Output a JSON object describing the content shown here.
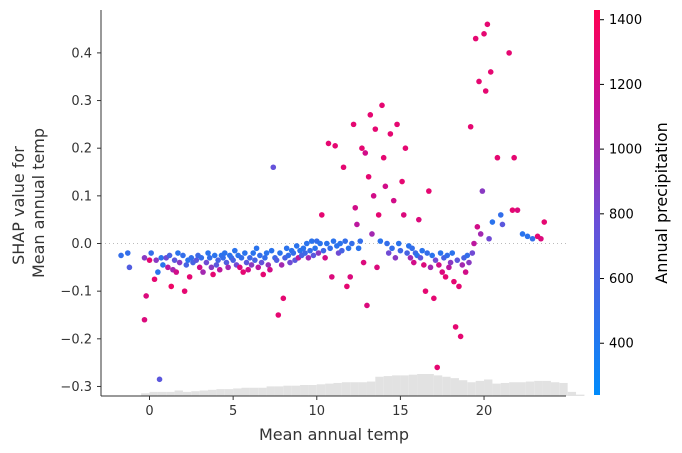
{
  "chart_data": {
    "type": "scatter",
    "title": "",
    "xlabel": "Mean annual temp",
    "ylabel": [
      "SHAP value for",
      "Mean annual temp"
    ],
    "xlim": [
      -2.9,
      24.9
    ],
    "ylim": [
      -0.32,
      0.49
    ],
    "x_ticks": [
      0,
      5,
      10,
      15,
      20
    ],
    "y_ticks": [
      -0.3,
      -0.2,
      -0.1,
      0.0,
      0.1,
      0.2,
      0.3,
      0.4
    ],
    "zero_line": true,
    "grid": false,
    "colorbar": {
      "label": "Annual precipitation",
      "range": [
        240,
        1430
      ],
      "ticks": [
        400,
        600,
        800,
        1000,
        1200,
        1400
      ],
      "colors": [
        "#008bfb",
        "#ff0052"
      ]
    },
    "histogram": {
      "bin_start": -1.5,
      "bin_width": 0.5,
      "heights": [
        0,
        0,
        0.2,
        0.3,
        0.3,
        0.3,
        0.4,
        0.3,
        0.35,
        0.4,
        0.45,
        0.5,
        0.5,
        0.55,
        0.6,
        0.6,
        0.6,
        0.7,
        0.7,
        0.75,
        0.75,
        0.8,
        0.8,
        0.85,
        0.9,
        0.95,
        1.0,
        1.0,
        1.0,
        1.05,
        1.4,
        1.45,
        1.5,
        1.5,
        1.55,
        1.6,
        1.6,
        1.5,
        1.4,
        1.3,
        1.15,
        1.0,
        1.1,
        1.2,
        0.9,
        0.95,
        1.0,
        1.0,
        1.05,
        1.1,
        1.1,
        1.0,
        0.95,
        0.3,
        0.1,
        0.0,
        0.0,
        0.0,
        0.0,
        0.0
      ]
    },
    "points": [
      {
        "x": -1.7,
        "y": -0.025,
        "c": 500
      },
      {
        "x": -1.3,
        "y": -0.02,
        "c": 500
      },
      {
        "x": -1.2,
        "y": -0.05,
        "c": 650
      },
      {
        "x": -0.3,
        "y": -0.03,
        "c": 900
      },
      {
        "x": -0.2,
        "y": -0.11,
        "c": 1250
      },
      {
        "x": -0.3,
        "y": -0.16,
        "c": 1250
      },
      {
        "x": 0.0,
        "y": -0.035,
        "c": 1300
      },
      {
        "x": 0.1,
        "y": -0.02,
        "c": 500
      },
      {
        "x": 0.3,
        "y": -0.075,
        "c": 1300
      },
      {
        "x": 0.4,
        "y": -0.035,
        "c": 900
      },
      {
        "x": 0.5,
        "y": -0.06,
        "c": 450
      },
      {
        "x": 0.6,
        "y": -0.285,
        "c": 700
      },
      {
        "x": 0.7,
        "y": -0.03,
        "c": 450
      },
      {
        "x": 0.8,
        "y": -0.045,
        "c": 450
      },
      {
        "x": 1.0,
        "y": -0.03,
        "c": 800
      },
      {
        "x": 1.1,
        "y": -0.05,
        "c": 1100
      },
      {
        "x": 1.2,
        "y": -0.025,
        "c": 600
      },
      {
        "x": 1.3,
        "y": -0.09,
        "c": 1350
      },
      {
        "x": 1.4,
        "y": -0.055,
        "c": 1000
      },
      {
        "x": 1.5,
        "y": -0.035,
        "c": 700
      },
      {
        "x": 1.6,
        "y": -0.06,
        "c": 1200
      },
      {
        "x": 1.7,
        "y": -0.02,
        "c": 450
      },
      {
        "x": 1.8,
        "y": -0.04,
        "c": 900
      },
      {
        "x": 2.0,
        "y": -0.025,
        "c": 500
      },
      {
        "x": 2.1,
        "y": -0.1,
        "c": 1300
      },
      {
        "x": 2.2,
        "y": -0.045,
        "c": 600
      },
      {
        "x": 2.3,
        "y": -0.035,
        "c": 450
      },
      {
        "x": 2.4,
        "y": -0.07,
        "c": 1300
      },
      {
        "x": 2.5,
        "y": -0.03,
        "c": 500
      },
      {
        "x": 2.6,
        "y": -0.04,
        "c": 600
      },
      {
        "x": 2.8,
        "y": -0.035,
        "c": 700
      },
      {
        "x": 2.9,
        "y": -0.025,
        "c": 550
      },
      {
        "x": 3.0,
        "y": -0.05,
        "c": 1200
      },
      {
        "x": 3.1,
        "y": -0.03,
        "c": 500
      },
      {
        "x": 3.2,
        "y": -0.06,
        "c": 1000
      },
      {
        "x": 3.4,
        "y": -0.04,
        "c": 800
      },
      {
        "x": 3.5,
        "y": -0.02,
        "c": 450
      },
      {
        "x": 3.6,
        "y": -0.03,
        "c": 500
      },
      {
        "x": 3.7,
        "y": -0.05,
        "c": 900
      },
      {
        "x": 3.8,
        "y": -0.065,
        "c": 1300
      },
      {
        "x": 3.9,
        "y": -0.025,
        "c": 450
      },
      {
        "x": 4.0,
        "y": -0.045,
        "c": 700
      },
      {
        "x": 4.1,
        "y": -0.035,
        "c": 600
      },
      {
        "x": 4.2,
        "y": -0.055,
        "c": 1100
      },
      {
        "x": 4.3,
        "y": -0.025,
        "c": 450
      },
      {
        "x": 4.4,
        "y": -0.03,
        "c": 500
      },
      {
        "x": 4.5,
        "y": -0.02,
        "c": 450
      },
      {
        "x": 4.6,
        "y": -0.04,
        "c": 650
      },
      {
        "x": 4.7,
        "y": -0.05,
        "c": 1000
      },
      {
        "x": 4.8,
        "y": -0.025,
        "c": 450
      },
      {
        "x": 4.9,
        "y": -0.03,
        "c": 500
      },
      {
        "x": 5.0,
        "y": -0.035,
        "c": 600
      },
      {
        "x": 5.1,
        "y": -0.015,
        "c": 450
      },
      {
        "x": 5.2,
        "y": -0.045,
        "c": 800
      },
      {
        "x": 5.3,
        "y": -0.025,
        "c": 450
      },
      {
        "x": 5.4,
        "y": -0.05,
        "c": 1250
      },
      {
        "x": 5.5,
        "y": -0.03,
        "c": 500
      },
      {
        "x": 5.6,
        "y": -0.06,
        "c": 1300
      },
      {
        "x": 5.7,
        "y": -0.02,
        "c": 450
      },
      {
        "x": 5.8,
        "y": -0.04,
        "c": 700
      },
      {
        "x": 5.9,
        "y": -0.055,
        "c": 1200
      },
      {
        "x": 6.0,
        "y": -0.03,
        "c": 550
      },
      {
        "x": 6.1,
        "y": -0.045,
        "c": 900
      },
      {
        "x": 6.2,
        "y": -0.02,
        "c": 450
      },
      {
        "x": 6.3,
        "y": -0.035,
        "c": 600
      },
      {
        "x": 6.4,
        "y": -0.01,
        "c": 450
      },
      {
        "x": 6.5,
        "y": -0.05,
        "c": 1100
      },
      {
        "x": 6.6,
        "y": -0.025,
        "c": 500
      },
      {
        "x": 6.7,
        "y": -0.04,
        "c": 750
      },
      {
        "x": 6.8,
        "y": -0.065,
        "c": 1300
      },
      {
        "x": 6.9,
        "y": -0.03,
        "c": 500
      },
      {
        "x": 7.0,
        "y": -0.02,
        "c": 450
      },
      {
        "x": 7.1,
        "y": -0.045,
        "c": 950
      },
      {
        "x": 7.2,
        "y": -0.055,
        "c": 1200
      },
      {
        "x": 7.3,
        "y": -0.015,
        "c": 450
      },
      {
        "x": 7.4,
        "y": 0.16,
        "c": 750
      },
      {
        "x": 7.5,
        "y": -0.03,
        "c": 550
      },
      {
        "x": 7.6,
        "y": -0.035,
        "c": 650
      },
      {
        "x": 7.7,
        "y": -0.15,
        "c": 1300
      },
      {
        "x": 7.8,
        "y": -0.02,
        "c": 450
      },
      {
        "x": 7.9,
        "y": -0.045,
        "c": 1000
      },
      {
        "x": 8.0,
        "y": -0.115,
        "c": 1300
      },
      {
        "x": 8.1,
        "y": -0.03,
        "c": 600
      },
      {
        "x": 8.2,
        "y": -0.01,
        "c": 450
      },
      {
        "x": 8.3,
        "y": -0.025,
        "c": 500
      },
      {
        "x": 8.4,
        "y": -0.04,
        "c": 800
      },
      {
        "x": 8.5,
        "y": -0.015,
        "c": 450
      },
      {
        "x": 8.6,
        "y": -0.02,
        "c": 500
      },
      {
        "x": 8.7,
        "y": -0.035,
        "c": 700
      },
      {
        "x": 8.8,
        "y": -0.005,
        "c": 450
      },
      {
        "x": 8.9,
        "y": -0.03,
        "c": 1100
      },
      {
        "x": 9.0,
        "y": -0.015,
        "c": 450
      },
      {
        "x": 9.1,
        "y": -0.025,
        "c": 600
      },
      {
        "x": 9.2,
        "y": -0.01,
        "c": 450
      },
      {
        "x": 9.3,
        "y": -0.02,
        "c": 550
      },
      {
        "x": 9.4,
        "y": 0.0,
        "c": 450
      },
      {
        "x": 9.5,
        "y": -0.03,
        "c": 1000
      },
      {
        "x": 9.6,
        "y": -0.015,
        "c": 500
      },
      {
        "x": 9.7,
        "y": 0.005,
        "c": 450
      },
      {
        "x": 9.8,
        "y": -0.025,
        "c": 700
      },
      {
        "x": 9.9,
        "y": -0.01,
        "c": 450
      },
      {
        "x": 10.0,
        "y": 0.005,
        "c": 500
      },
      {
        "x": 10.1,
        "y": -0.02,
        "c": 900
      },
      {
        "x": 10.2,
        "y": 0.0,
        "c": 450
      },
      {
        "x": 10.3,
        "y": 0.06,
        "c": 1300
      },
      {
        "x": 10.4,
        "y": -0.015,
        "c": 550
      },
      {
        "x": 10.5,
        "y": -0.03,
        "c": 1200
      },
      {
        "x": 10.6,
        "y": 0.0,
        "c": 450
      },
      {
        "x": 10.7,
        "y": 0.21,
        "c": 1300
      },
      {
        "x": 10.8,
        "y": -0.01,
        "c": 500
      },
      {
        "x": 10.9,
        "y": -0.07,
        "c": 1250
      },
      {
        "x": 11.0,
        "y": 0.005,
        "c": 450
      },
      {
        "x": 11.1,
        "y": 0.205,
        "c": 1300
      },
      {
        "x": 11.2,
        "y": -0.005,
        "c": 450
      },
      {
        "x": 11.3,
        "y": -0.02,
        "c": 800
      },
      {
        "x": 11.4,
        "y": 0.0,
        "c": 450
      },
      {
        "x": 11.5,
        "y": -0.015,
        "c": 600
      },
      {
        "x": 11.6,
        "y": 0.16,
        "c": 1300
      },
      {
        "x": 11.7,
        "y": 0.005,
        "c": 500
      },
      {
        "x": 11.8,
        "y": -0.09,
        "c": 1300
      },
      {
        "x": 11.9,
        "y": -0.01,
        "c": 450
      },
      {
        "x": 12.0,
        "y": -0.07,
        "c": 1250
      },
      {
        "x": 12.1,
        "y": 0.0,
        "c": 500
      },
      {
        "x": 12.2,
        "y": 0.25,
        "c": 1300
      },
      {
        "x": 12.3,
        "y": 0.075,
        "c": 1200
      },
      {
        "x": 12.4,
        "y": 0.04,
        "c": 1100
      },
      {
        "x": 12.5,
        "y": -0.01,
        "c": 450
      },
      {
        "x": 12.6,
        "y": 0.005,
        "c": 500
      },
      {
        "x": 12.7,
        "y": 0.2,
        "c": 1300
      },
      {
        "x": 12.8,
        "y": -0.04,
        "c": 1250
      },
      {
        "x": 12.9,
        "y": 0.19,
        "c": 1200
      },
      {
        "x": 13.0,
        "y": -0.13,
        "c": 1250
      },
      {
        "x": 13.1,
        "y": 0.14,
        "c": 1300
      },
      {
        "x": 13.2,
        "y": 0.27,
        "c": 1300
      },
      {
        "x": 13.3,
        "y": 0.02,
        "c": 1000
      },
      {
        "x": 13.4,
        "y": 0.1,
        "c": 1200
      },
      {
        "x": 13.5,
        "y": 0.24,
        "c": 1300
      },
      {
        "x": 13.6,
        "y": -0.05,
        "c": 1250
      },
      {
        "x": 13.7,
        "y": 0.06,
        "c": 1300
      },
      {
        "x": 13.8,
        "y": 0.005,
        "c": 450
      },
      {
        "x": 13.9,
        "y": 0.29,
        "c": 1300
      },
      {
        "x": 14.0,
        "y": 0.18,
        "c": 1300
      },
      {
        "x": 14.1,
        "y": 0.12,
        "c": 1200
      },
      {
        "x": 14.2,
        "y": 0.0,
        "c": 500
      },
      {
        "x": 14.3,
        "y": -0.02,
        "c": 800
      },
      {
        "x": 14.4,
        "y": 0.23,
        "c": 1300
      },
      {
        "x": 14.5,
        "y": -0.01,
        "c": 500
      },
      {
        "x": 14.6,
        "y": 0.09,
        "c": 1200
      },
      {
        "x": 14.7,
        "y": -0.03,
        "c": 900
      },
      {
        "x": 14.8,
        "y": 0.25,
        "c": 1300
      },
      {
        "x": 14.9,
        "y": 0.0,
        "c": 450
      },
      {
        "x": 15.0,
        "y": -0.015,
        "c": 550
      },
      {
        "x": 15.1,
        "y": 0.13,
        "c": 1300
      },
      {
        "x": 15.2,
        "y": 0.06,
        "c": 1250
      },
      {
        "x": 15.3,
        "y": 0.2,
        "c": 1300
      },
      {
        "x": 15.4,
        "y": -0.02,
        "c": 600
      },
      {
        "x": 15.5,
        "y": -0.005,
        "c": 450
      },
      {
        "x": 15.6,
        "y": -0.03,
        "c": 1000
      },
      {
        "x": 15.7,
        "y": -0.01,
        "c": 500
      },
      {
        "x": 15.8,
        "y": -0.04,
        "c": 1200
      },
      {
        "x": 15.9,
        "y": -0.02,
        "c": 550
      },
      {
        "x": 16.0,
        "y": -0.025,
        "c": 450
      },
      {
        "x": 16.1,
        "y": 0.05,
        "c": 1250
      },
      {
        "x": 16.2,
        "y": -0.03,
        "c": 700
      },
      {
        "x": 16.3,
        "y": -0.015,
        "c": 450
      },
      {
        "x": 16.4,
        "y": -0.045,
        "c": 1250
      },
      {
        "x": 16.5,
        "y": -0.1,
        "c": 1300
      },
      {
        "x": 16.6,
        "y": -0.02,
        "c": 500
      },
      {
        "x": 16.7,
        "y": 0.11,
        "c": 1300
      },
      {
        "x": 16.8,
        "y": -0.05,
        "c": 1000
      },
      {
        "x": 16.9,
        "y": -0.025,
        "c": 450
      },
      {
        "x": 17.0,
        "y": -0.115,
        "c": 1300
      },
      {
        "x": 17.1,
        "y": -0.035,
        "c": 800
      },
      {
        "x": 17.2,
        "y": -0.26,
        "c": 1300
      },
      {
        "x": 17.3,
        "y": -0.045,
        "c": 1200
      },
      {
        "x": 17.4,
        "y": -0.02,
        "c": 450
      },
      {
        "x": 17.5,
        "y": -0.06,
        "c": 1250
      },
      {
        "x": 17.6,
        "y": -0.03,
        "c": 600
      },
      {
        "x": 17.7,
        "y": -0.07,
        "c": 1300
      },
      {
        "x": 17.8,
        "y": -0.025,
        "c": 500
      },
      {
        "x": 17.9,
        "y": -0.05,
        "c": 1100
      },
      {
        "x": 18.0,
        "y": -0.04,
        "c": 900
      },
      {
        "x": 18.1,
        "y": -0.02,
        "c": 450
      },
      {
        "x": 18.2,
        "y": -0.08,
        "c": 1300
      },
      {
        "x": 18.3,
        "y": -0.175,
        "c": 1300
      },
      {
        "x": 18.4,
        "y": -0.035,
        "c": 700
      },
      {
        "x": 18.5,
        "y": -0.09,
        "c": 1300
      },
      {
        "x": 18.6,
        "y": -0.195,
        "c": 1300
      },
      {
        "x": 18.7,
        "y": -0.045,
        "c": 1000
      },
      {
        "x": 18.8,
        "y": -0.03,
        "c": 600
      },
      {
        "x": 18.9,
        "y": -0.06,
        "c": 1200
      },
      {
        "x": 19.0,
        "y": -0.025,
        "c": 500
      },
      {
        "x": 19.1,
        "y": -0.04,
        "c": 900
      },
      {
        "x": 19.2,
        "y": 0.245,
        "c": 1300
      },
      {
        "x": 19.3,
        "y": -0.02,
        "c": 800
      },
      {
        "x": 19.4,
        "y": 0.0,
        "c": 1100
      },
      {
        "x": 19.5,
        "y": 0.43,
        "c": 1300
      },
      {
        "x": 19.6,
        "y": 0.035,
        "c": 1200
      },
      {
        "x": 19.7,
        "y": 0.34,
        "c": 1300
      },
      {
        "x": 19.8,
        "y": 0.02,
        "c": 1000
      },
      {
        "x": 19.9,
        "y": 0.11,
        "c": 900
      },
      {
        "x": 20.0,
        "y": 0.44,
        "c": 1300
      },
      {
        "x": 20.1,
        "y": 0.32,
        "c": 1300
      },
      {
        "x": 20.2,
        "y": 0.46,
        "c": 1300
      },
      {
        "x": 20.3,
        "y": 0.01,
        "c": 800
      },
      {
        "x": 20.4,
        "y": 0.36,
        "c": 1300
      },
      {
        "x": 20.5,
        "y": 0.045,
        "c": 450
      },
      {
        "x": 20.8,
        "y": 0.18,
        "c": 1300
      },
      {
        "x": 21.0,
        "y": 0.06,
        "c": 500
      },
      {
        "x": 21.1,
        "y": 0.04,
        "c": 700
      },
      {
        "x": 21.5,
        "y": 0.4,
        "c": 1300
      },
      {
        "x": 21.7,
        "y": 0.07,
        "c": 1300
      },
      {
        "x": 21.8,
        "y": 0.18,
        "c": 1300
      },
      {
        "x": 22.0,
        "y": 0.07,
        "c": 1250
      },
      {
        "x": 22.3,
        "y": 0.02,
        "c": 450
      },
      {
        "x": 22.6,
        "y": 0.015,
        "c": 450
      },
      {
        "x": 22.9,
        "y": 0.01,
        "c": 500
      },
      {
        "x": 23.2,
        "y": 0.015,
        "c": 1300
      },
      {
        "x": 23.4,
        "y": 0.01,
        "c": 1250
      },
      {
        "x": 23.6,
        "y": 0.045,
        "c": 1300
      }
    ]
  }
}
